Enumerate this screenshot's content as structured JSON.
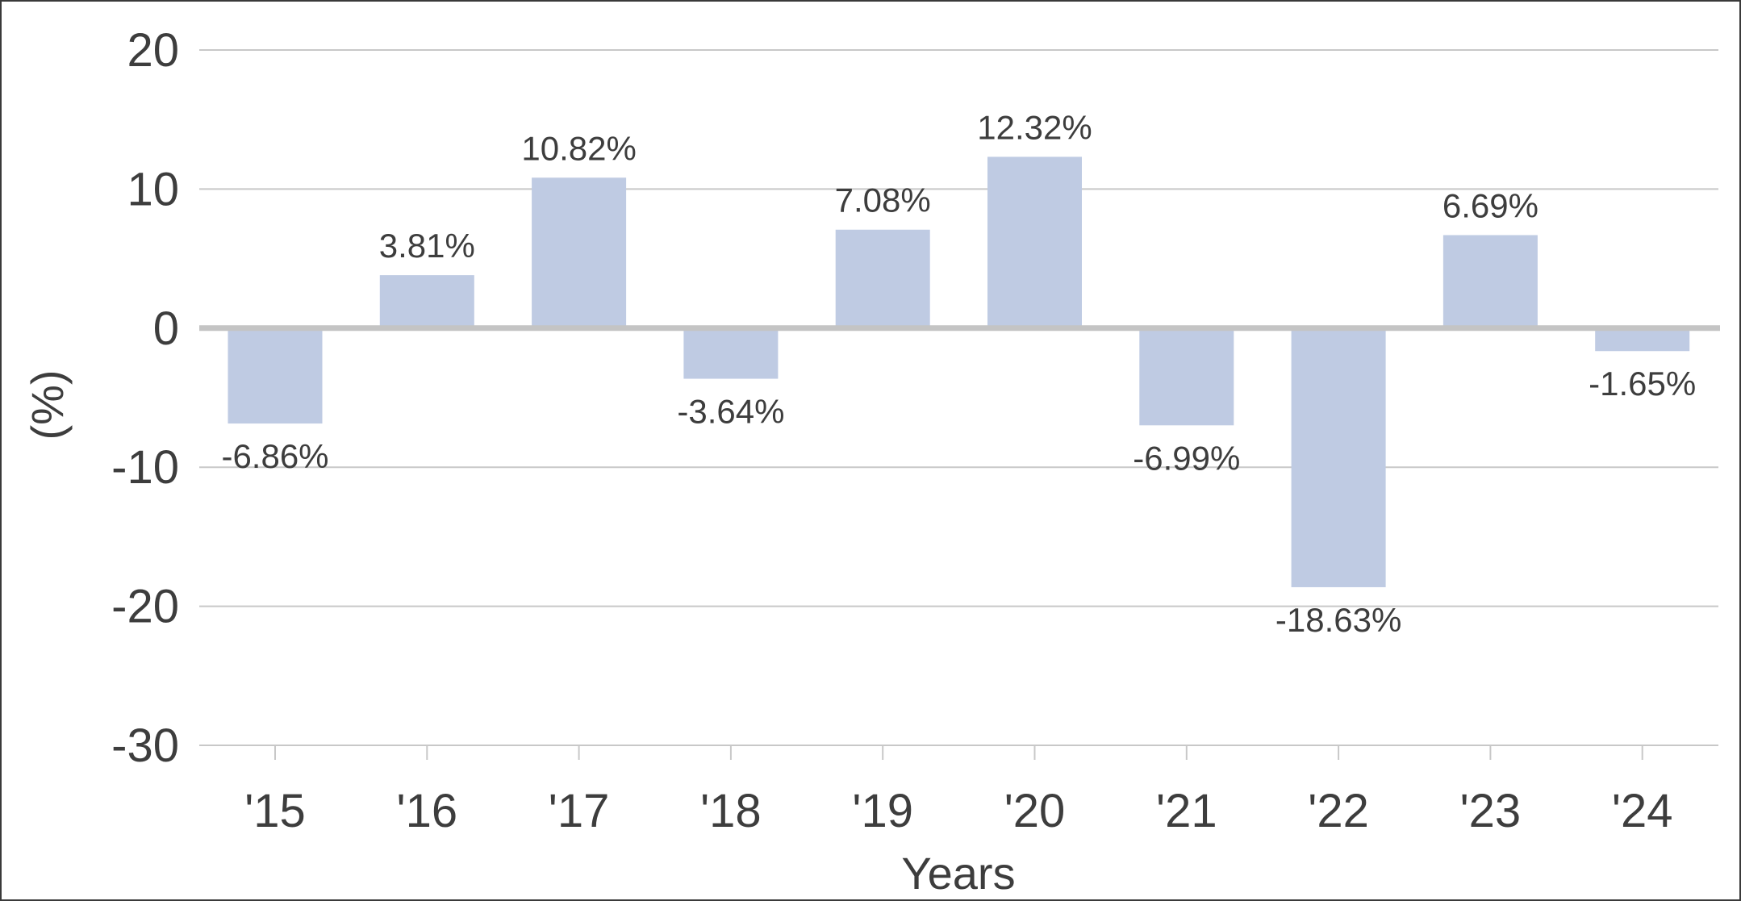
{
  "chart_data": {
    "type": "bar",
    "categories": [
      "'15",
      "'16",
      "'17",
      "'18",
      "'19",
      "'20",
      "'21",
      "'22",
      "'23",
      "'24"
    ],
    "values": [
      -6.86,
      3.81,
      10.82,
      -3.64,
      7.08,
      12.32,
      -6.99,
      -18.63,
      6.69,
      -1.65
    ],
    "data_labels": [
      "-6.86%",
      "3.81%",
      "10.82%",
      "-3.64%",
      "7.08%",
      "12.32%",
      "-6.99%",
      "-18.63%",
      "6.69%",
      "-1.65%"
    ],
    "xlabel": "Years",
    "ylabel": "(%)",
    "ylim": [
      -30,
      20
    ],
    "yticks": [
      20,
      10,
      0,
      -10,
      -20,
      -30
    ],
    "ytick_labels": [
      "20",
      "10",
      "0",
      "-10",
      "-20",
      "-30"
    ],
    "grid": true,
    "legend": "none",
    "bar_color": "#bfcbe3",
    "gridline_color": "#c8c8c8",
    "zero_line_color": "#c4c4c4",
    "text_color": "#3d3d3d"
  }
}
